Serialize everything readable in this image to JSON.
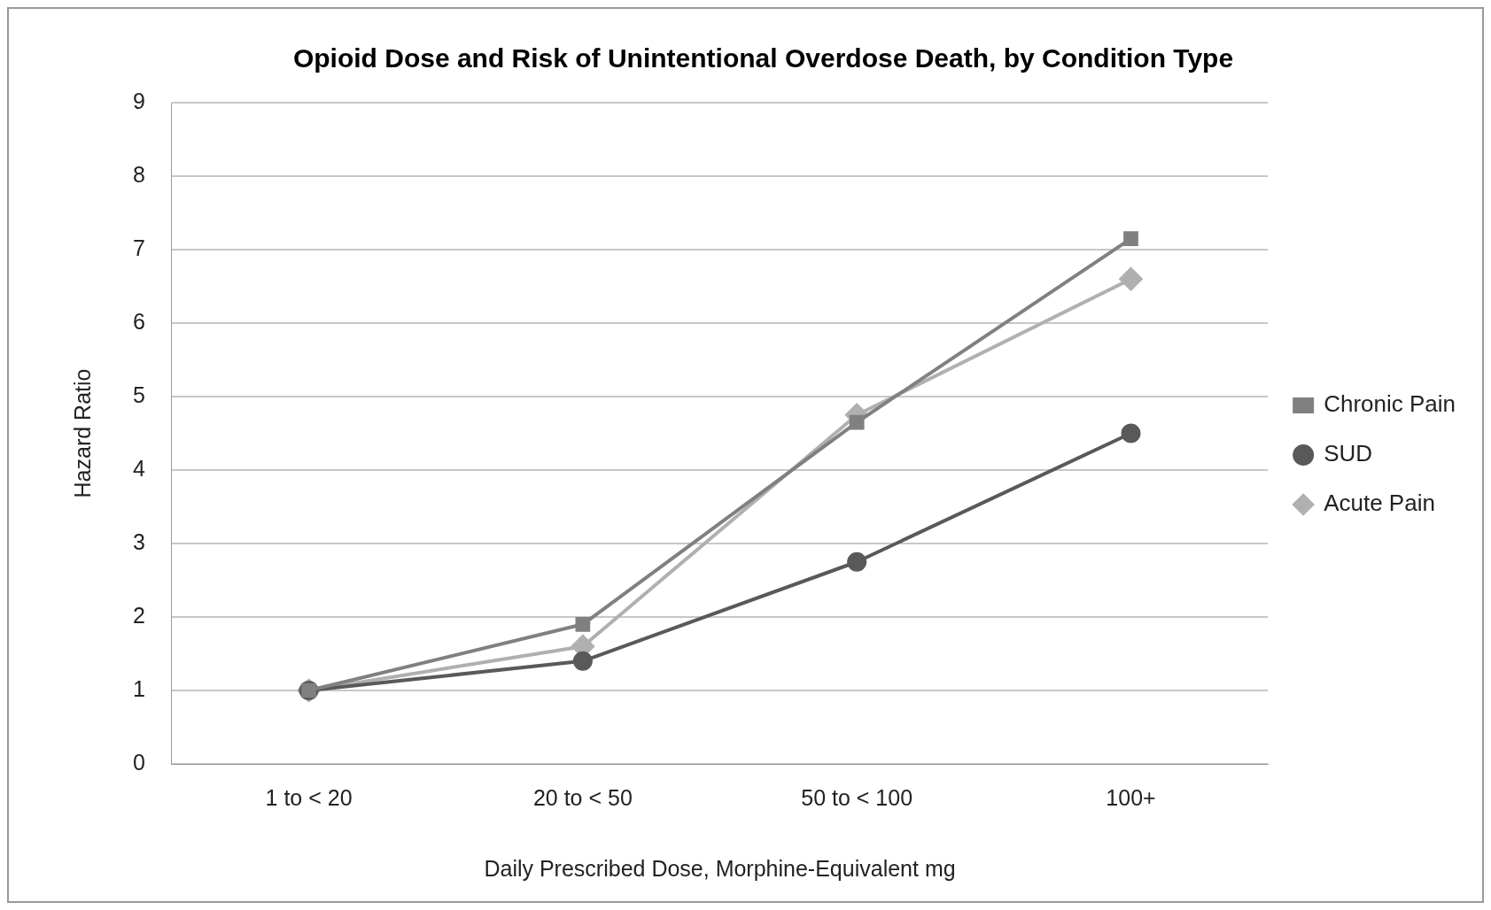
{
  "chart_data": {
    "type": "line",
    "title": "Opioid Dose and Risk of Unintentional Overdose Death, by Condition Type",
    "xlabel": "Daily Prescribed Dose, Morphine-Equivalent mg",
    "ylabel": "Hazard Ratio",
    "categories": [
      "1 to < 20",
      "20 to < 50",
      "50 to < 100",
      "100+"
    ],
    "series": [
      {
        "name": "Chronic Pain",
        "color": "#808080",
        "marker": "square",
        "values": [
          1,
          1.9,
          4.65,
          7.15
        ]
      },
      {
        "name": "SUD",
        "color": "#595959",
        "marker": "circle",
        "values": [
          1,
          1.4,
          2.75,
          4.5
        ]
      },
      {
        "name": "Acute Pain",
        "color": "#b0b0b0",
        "marker": "diamond",
        "values": [
          1,
          1.6,
          4.75,
          6.6
        ]
      }
    ],
    "ylim": [
      0,
      9
    ],
    "yticks": [
      0,
      1,
      2,
      3,
      4,
      5,
      6,
      7,
      8,
      9
    ],
    "grid": "y",
    "legend": "right"
  }
}
